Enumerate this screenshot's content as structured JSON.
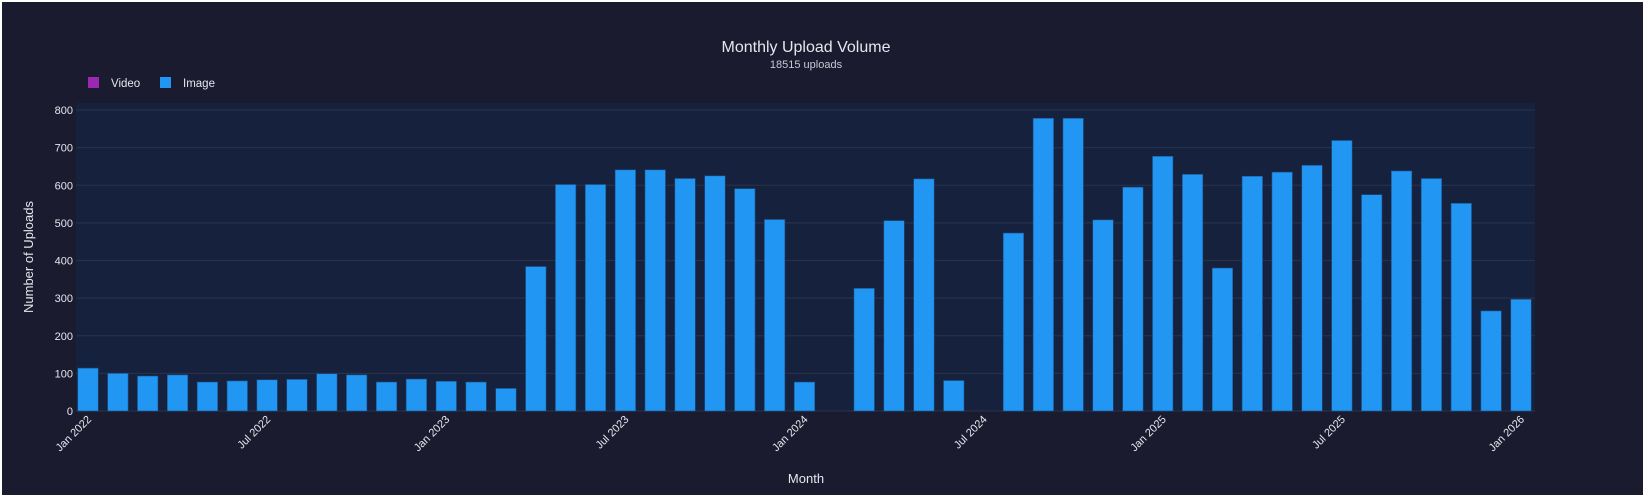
{
  "chart_data": {
    "type": "bar",
    "title": "Monthly Upload Volume",
    "subtitle": "18515 uploads",
    "xlabel": "Month",
    "ylabel": "Number of Uploads",
    "ylim": [
      0,
      800
    ],
    "yticks": [
      0,
      100,
      200,
      300,
      400,
      500,
      600,
      700,
      800
    ],
    "grid": true,
    "legend_placement": "top-left",
    "legend": [
      {
        "name": "Video",
        "color": "#9c27b0"
      },
      {
        "name": "Image",
        "color": "#2196f3"
      }
    ],
    "xtick_labels": [
      {
        "month": "2022-01",
        "label": "Jan 2022"
      },
      {
        "month": "2022-07",
        "label": "Jul 2022"
      },
      {
        "month": "2023-01",
        "label": "Jan 2023"
      },
      {
        "month": "2023-07",
        "label": "Jul 2023"
      },
      {
        "month": "2024-01",
        "label": "Jan 2024"
      },
      {
        "month": "2024-07",
        "label": "Jul 2024"
      },
      {
        "month": "2025-01",
        "label": "Jan 2025"
      },
      {
        "month": "2025-07",
        "label": "Jul 2025"
      },
      {
        "month": "2026-01",
        "label": "Jan 2026"
      }
    ],
    "categories": [
      "2022-01",
      "2022-02",
      "2022-03",
      "2022-04",
      "2022-05",
      "2022-06",
      "2022-07",
      "2022-08",
      "2022-09",
      "2022-10",
      "2022-11",
      "2022-12",
      "2023-01",
      "2023-02",
      "2023-03",
      "2023-04",
      "2023-05",
      "2023-06",
      "2023-07",
      "2023-08",
      "2023-09",
      "2023-10",
      "2023-11",
      "2023-12",
      "2024-01",
      "2024-02",
      "2024-03",
      "2024-04",
      "2024-05",
      "2024-06",
      "2024-07",
      "2024-08",
      "2024-09",
      "2024-10",
      "2024-11",
      "2024-12",
      "2025-01",
      "2025-02",
      "2025-03",
      "2025-04",
      "2025-05",
      "2025-06",
      "2025-07",
      "2025-08",
      "2025-09",
      "2025-10",
      "2025-11",
      "2025-12",
      "2026-01"
    ],
    "series": [
      {
        "name": "Video",
        "values": [
          0,
          0,
          0,
          0,
          0,
          0,
          0,
          0,
          0,
          0,
          0,
          0,
          0,
          0,
          0,
          0,
          0,
          0,
          0,
          0,
          0,
          0,
          0,
          0,
          0,
          0,
          0,
          0,
          0,
          0,
          0,
          0,
          0,
          0,
          0,
          0,
          0,
          0,
          0,
          0,
          0,
          0,
          0,
          0,
          0,
          0,
          0,
          0,
          0
        ]
      },
      {
        "name": "Image",
        "values": [
          114,
          100,
          93,
          96,
          77,
          80,
          83,
          84,
          99,
          96,
          77,
          85,
          79,
          77,
          60,
          384,
          602,
          602,
          641,
          641,
          618,
          625,
          591,
          509,
          77,
          0,
          326,
          506,
          617,
          81,
          0,
          473,
          778,
          778,
          508,
          595,
          677,
          629,
          380,
          624,
          635,
          653,
          719,
          575,
          638,
          618,
          552,
          266,
          297
        ]
      }
    ],
    "colors": {
      "background": "#1a1b2e",
      "plot_background": "#16213e",
      "grid": "#263149",
      "text": "#e6e6ee"
    }
  }
}
